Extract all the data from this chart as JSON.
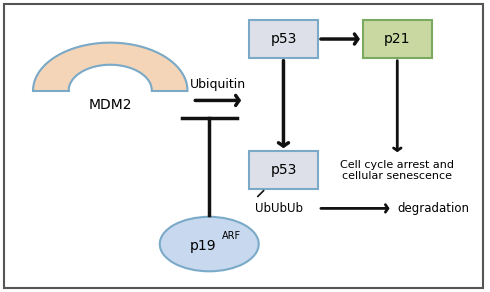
{
  "bg_color": "#ffffff",
  "border_color": "#555555",
  "mdm2_fill": "#f5d5b8",
  "mdm2_edge": "#7aaac8",
  "p53_top_fill": "#dde0e8",
  "p53_top_edge": "#7aaac8",
  "p21_fill": "#c8d8a0",
  "p21_edge": "#7aaa60",
  "p53_bot_fill": "#dde0e8",
  "p53_bot_edge": "#7aaac8",
  "p19_fill": "#c8d8ee",
  "p19_edge": "#7aaac8",
  "arrow_color": "#111111",
  "labels": {
    "mdm2": "MDM2",
    "p53_top": "p53",
    "p21": "p21",
    "p53_bot": "p53",
    "p19": "p19",
    "p19_sup": "ARF",
    "ubiquitin": "Ubiquitin",
    "ububub": "UbUbUb",
    "degradation": "degradation",
    "cell_cycle": "Cell cycle arrest and\ncellular senescence"
  }
}
